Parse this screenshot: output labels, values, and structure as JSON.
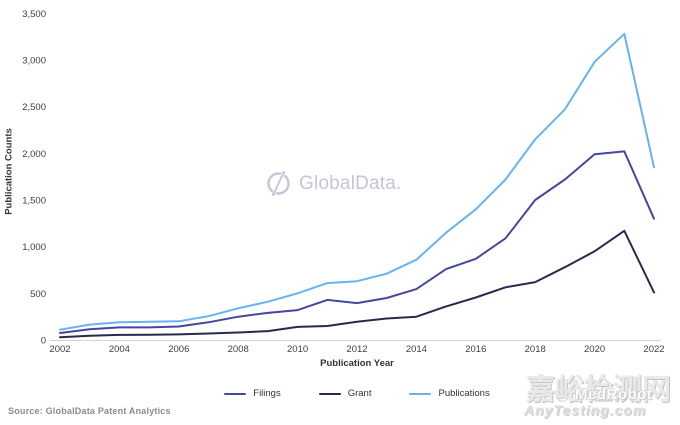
{
  "chart_data": {
    "type": "line",
    "title": "",
    "xlabel": "Publication Year",
    "ylabel": "Publication Counts",
    "ylim": [
      0,
      3500
    ],
    "ytick_step": 500,
    "grid": false,
    "legend_position": "bottom",
    "x": [
      2002,
      2003,
      2004,
      2005,
      2006,
      2007,
      2008,
      2009,
      2010,
      2011,
      2012,
      2013,
      2014,
      2015,
      2016,
      2017,
      2018,
      2019,
      2020,
      2021,
      2022
    ],
    "xticks": [
      2002,
      2004,
      2006,
      2008,
      2010,
      2012,
      2014,
      2016,
      2018,
      2020,
      2022
    ],
    "series": [
      {
        "name": "Filings",
        "color": "#4448a0",
        "values": [
          75,
          115,
          135,
          135,
          145,
          190,
          250,
          290,
          320,
          430,
          395,
          450,
          545,
          760,
          870,
          1090,
          1500,
          1720,
          1990,
          2020,
          1300
        ]
      },
      {
        "name": "Grant",
        "color": "#262b4e",
        "values": [
          30,
          45,
          55,
          57,
          60,
          70,
          80,
          95,
          140,
          150,
          195,
          230,
          250,
          360,
          455,
          565,
          620,
          780,
          950,
          1170,
          510
        ]
      },
      {
        "name": "Publications",
        "color": "#66b3f2",
        "values": [
          110,
          165,
          190,
          195,
          200,
          255,
          340,
          410,
          500,
          610,
          630,
          710,
          860,
          1150,
          1400,
          1720,
          2150,
          2470,
          2980,
          3280,
          1850
        ]
      }
    ]
  },
  "axes": {
    "x_title": "Publication Year",
    "y_title": "Publication Counts"
  },
  "footer": {
    "source": "Source: GlobalData Patent Analytics"
  },
  "watermarks": {
    "globaldata_text": "GlobalData.",
    "globaldata_icon": "globaldata-logo-icon",
    "globaldata_color": "#c7c0d8",
    "cn_site": "嘉峪检测网",
    "medrobot": "MedRobot",
    "anytesting": "AnyTesting.com"
  }
}
